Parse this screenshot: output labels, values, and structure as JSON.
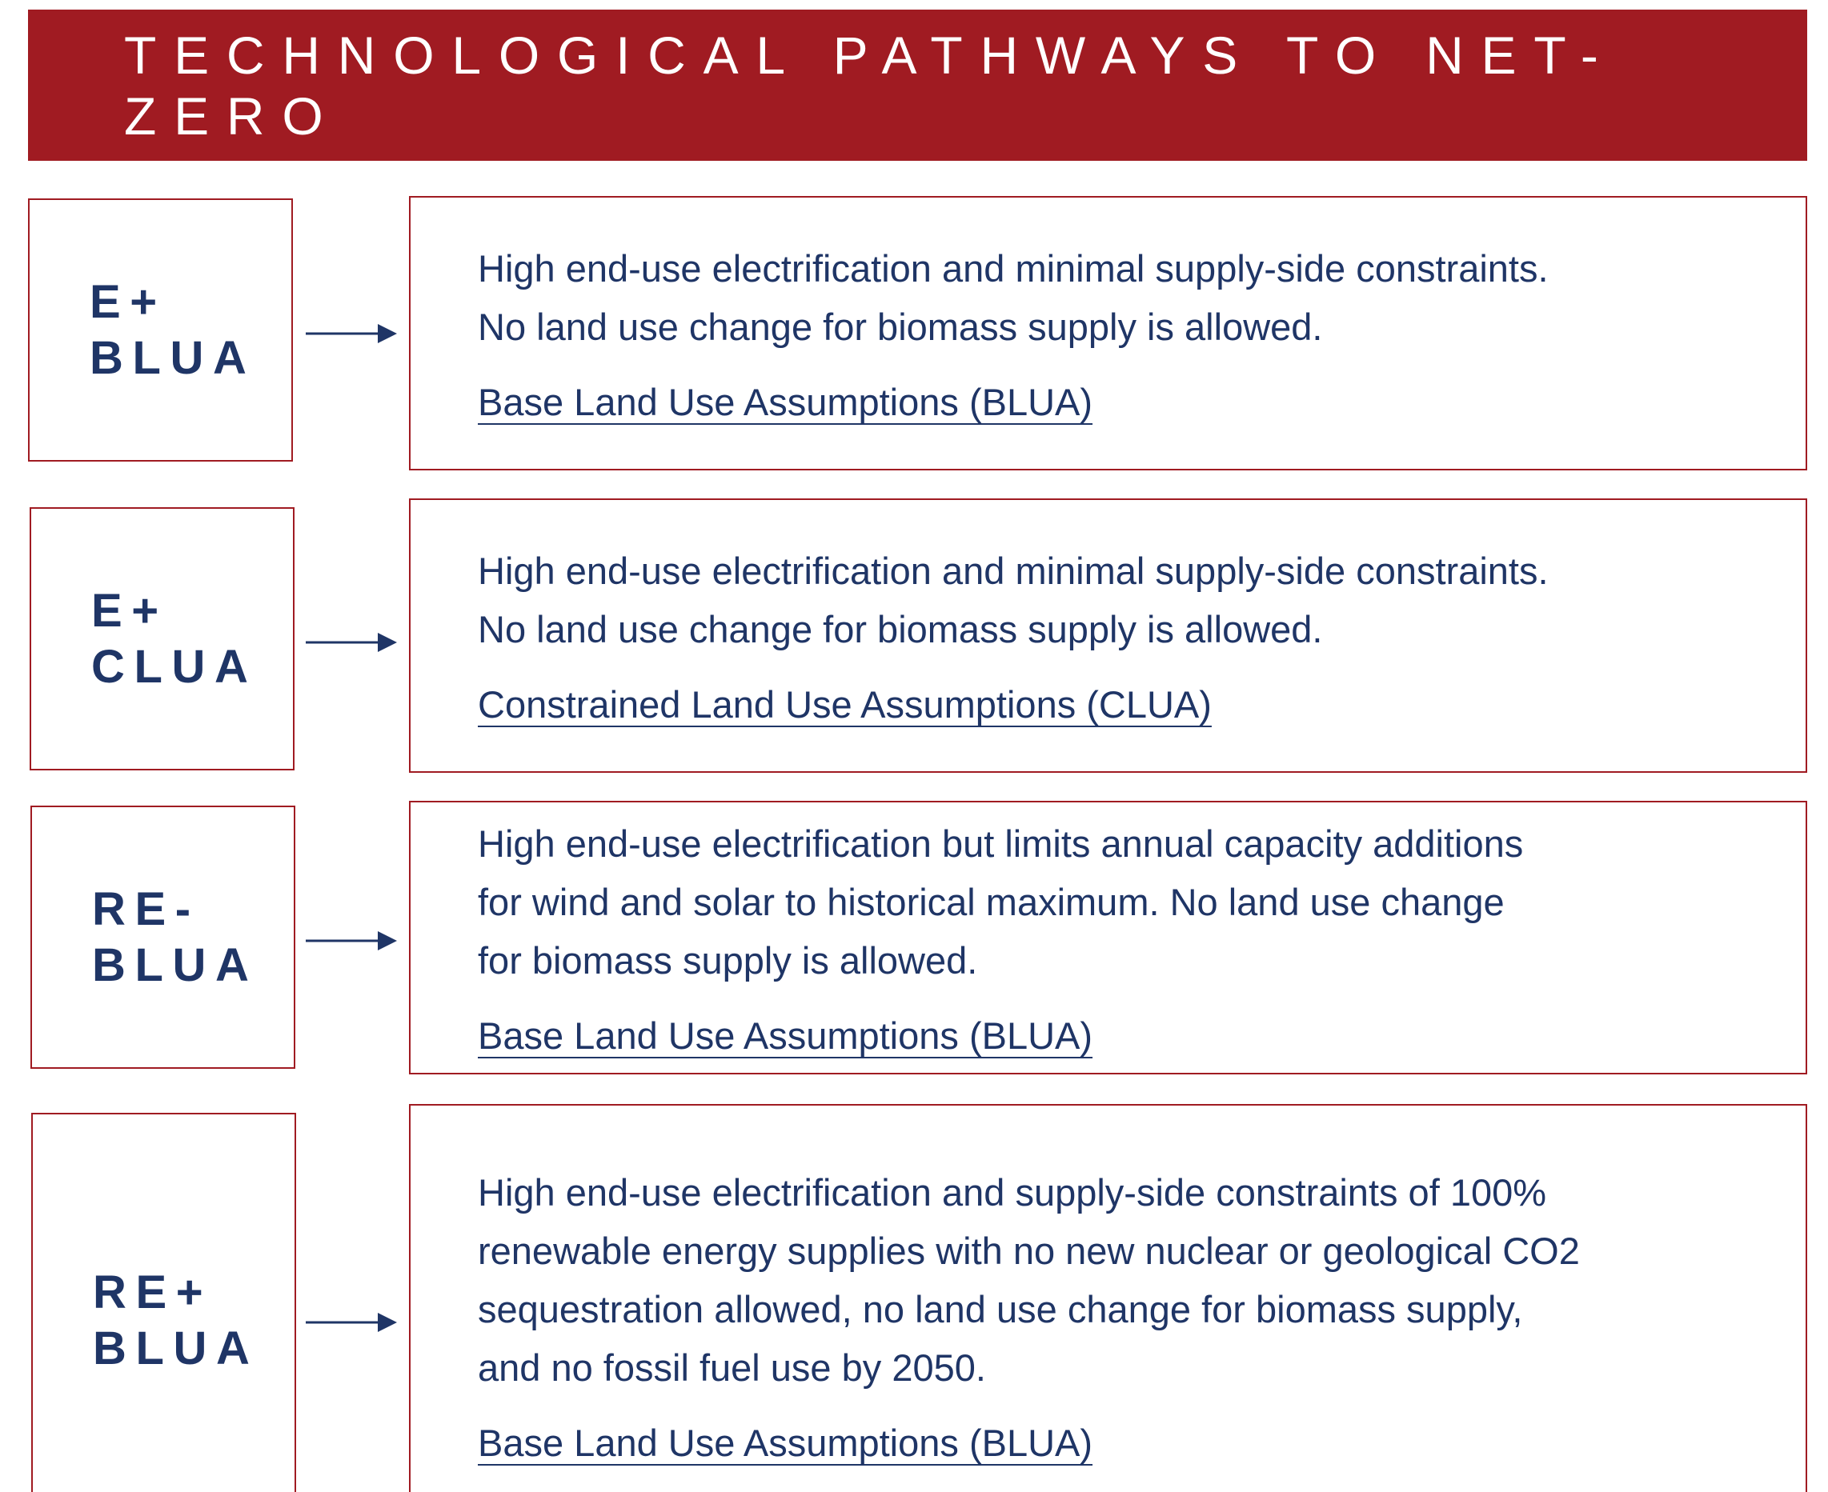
{
  "header": {
    "title": "TECHNOLOGICAL PATHWAYS TO NET-ZERO"
  },
  "pathways": [
    {
      "code": [
        "E+",
        "BLUA"
      ],
      "description": [
        "High end-use electrification and minimal supply-side constraints.",
        "No land use change for biomass supply is allowed."
      ],
      "link": "Base Land Use Assumptions (BLUA)"
    },
    {
      "code": [
        "E+",
        "CLUA"
      ],
      "description": [
        "High end-use electrification and minimal supply-side constraints.",
        "No land use change for biomass supply is allowed."
      ],
      "link": "Constrained Land Use Assumptions (CLUA)"
    },
    {
      "code": [
        "RE-",
        "BLUA"
      ],
      "description": [
        "High end-use electrification but limits annual capacity additions",
        "for wind and solar to historical maximum. No land use change",
        "for biomass supply is allowed."
      ],
      "link": "Base Land Use Assumptions (BLUA)"
    },
    {
      "code": [
        "RE+",
        "BLUA"
      ],
      "description": [
        "High end-use electrification and supply-side constraints of 100%",
        "renewable energy supplies with no new nuclear or geological CO2",
        "sequestration allowed, no land use change for biomass supply,",
        "and no fossil fuel use by 2050."
      ],
      "link": "Base Land Use Assumptions (BLUA)"
    }
  ]
}
